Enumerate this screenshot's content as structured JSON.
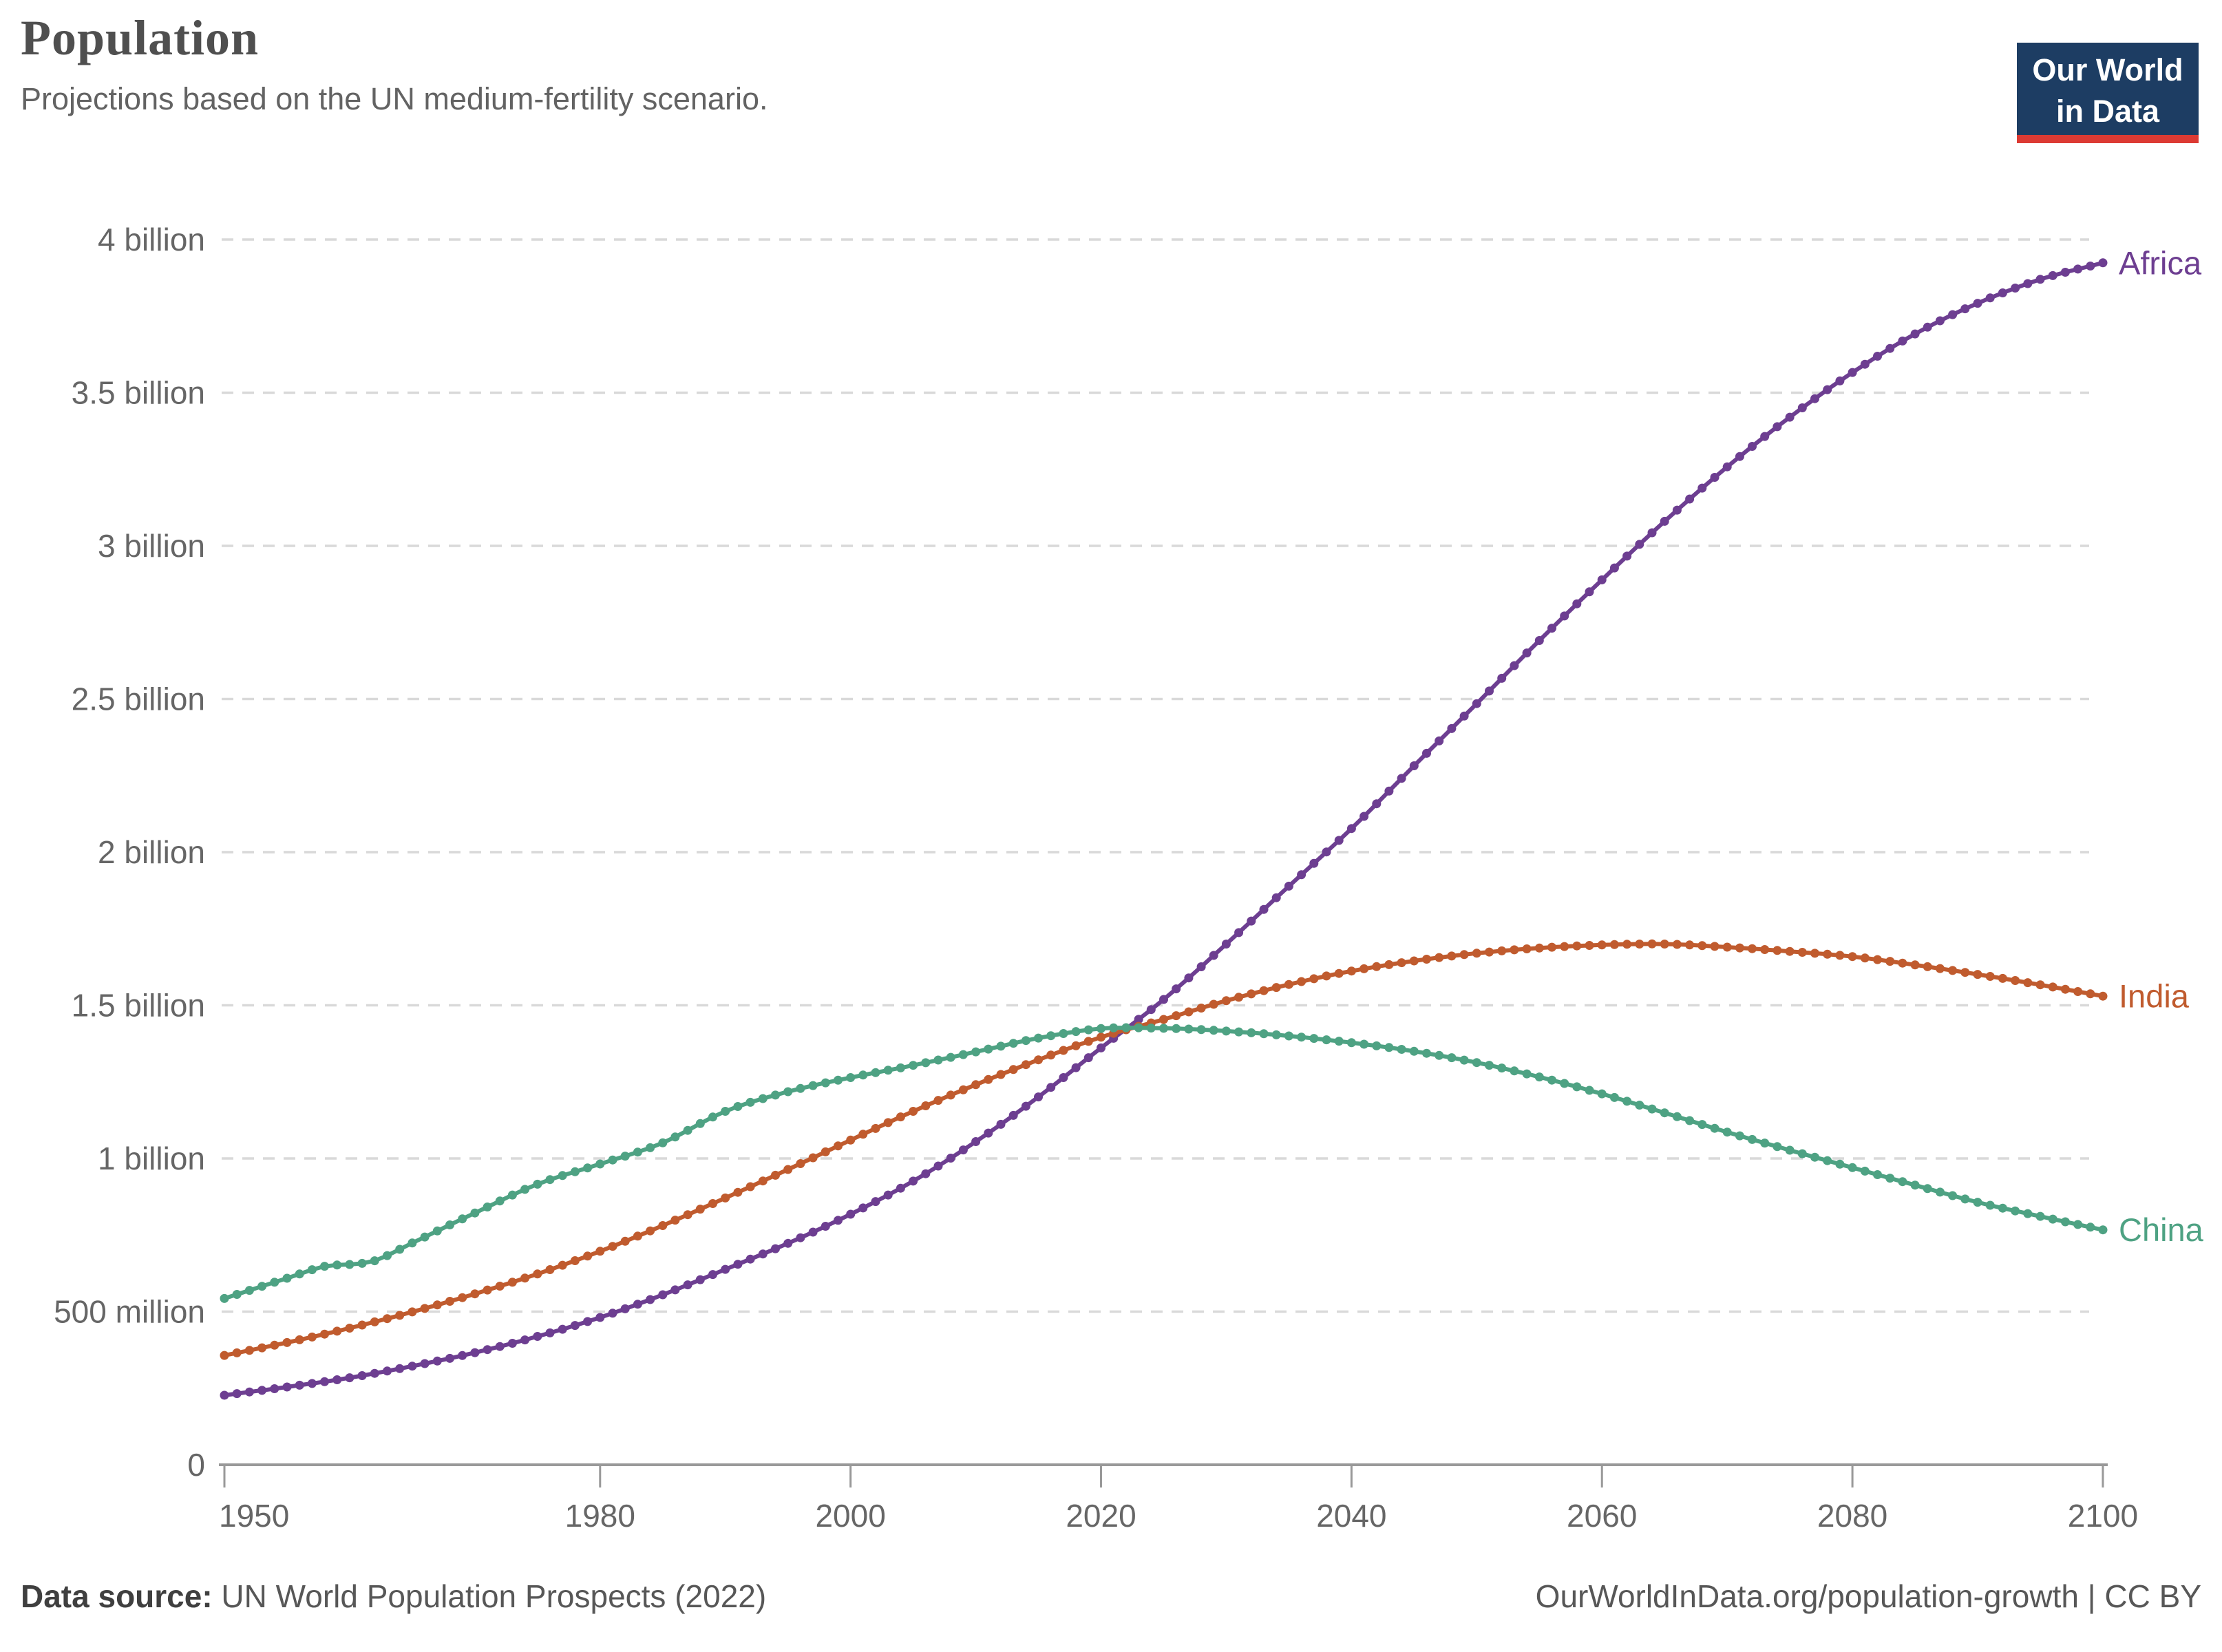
{
  "header": {
    "title": "Population",
    "subtitle": "Projections based on the UN medium-fertility scenario."
  },
  "logo": {
    "line1": "Our World",
    "line2": "in Data",
    "bg_color": "#1d3d63",
    "bar_color": "#dc3a33"
  },
  "footer": {
    "source_label": "Data source:",
    "source_text": " UN World Population Prospects (2022)",
    "credit": "OurWorldInData.org/population-growth | CC BY"
  },
  "chart_data": {
    "type": "line",
    "title": "Population",
    "subtitle": "Projections based on the UN medium-fertility scenario.",
    "xlabel": "",
    "ylabel": "",
    "xlim": [
      1950,
      2100
    ],
    "ylim": [
      0,
      4
    ],
    "grid": "horizontal-dashed",
    "legend_position": "right-end-labels",
    "units": "billions of people",
    "x_ticks": [
      "1950",
      "1980",
      "2000",
      "2020",
      "2040",
      "2060",
      "2080",
      "2100"
    ],
    "y_ticks": [
      {
        "value": 0,
        "label": "0"
      },
      {
        "value": 0.5,
        "label": "500 million"
      },
      {
        "value": 1,
        "label": "1 billion"
      },
      {
        "value": 1.5,
        "label": "1.5 billion"
      },
      {
        "value": 2,
        "label": "2 billion"
      },
      {
        "value": 2.5,
        "label": "2.5 billion"
      },
      {
        "value": 3,
        "label": "3 billion"
      },
      {
        "value": 3.5,
        "label": "3.5 billion"
      },
      {
        "value": 4,
        "label": "4 billion"
      }
    ],
    "colors": {
      "grid": "#d9d9d9",
      "axis": "#999999",
      "tick_text": "#666666"
    },
    "marker_style": "dot-per-year",
    "series": [
      {
        "name": "Africa",
        "color": "#6d3e91",
        "points": [
          [
            1950,
            0.227
          ],
          [
            1955,
            0.254
          ],
          [
            1960,
            0.284
          ],
          [
            1965,
            0.322
          ],
          [
            1970,
            0.366
          ],
          [
            1975,
            0.419
          ],
          [
            1980,
            0.481
          ],
          [
            1985,
            0.555
          ],
          [
            1990,
            0.638
          ],
          [
            1995,
            0.723
          ],
          [
            2000,
            0.818
          ],
          [
            2005,
            0.926
          ],
          [
            2010,
            1.055
          ],
          [
            2015,
            1.201
          ],
          [
            2020,
            1.361
          ],
          [
            2025,
            1.519
          ],
          [
            2030,
            1.7
          ],
          [
            2035,
            1.889
          ],
          [
            2040,
            2.077
          ],
          [
            2045,
            2.282
          ],
          [
            2050,
            2.485
          ],
          [
            2055,
            2.691
          ],
          [
            2060,
            2.889
          ],
          [
            2065,
            3.08
          ],
          [
            2070,
            3.258
          ],
          [
            2075,
            3.42
          ],
          [
            2080,
            3.566
          ],
          [
            2085,
            3.692
          ],
          [
            2090,
            3.792
          ],
          [
            2095,
            3.87
          ],
          [
            2100,
            3.924
          ]
        ]
      },
      {
        "name": "India",
        "color": "#c05b2e",
        "points": [
          [
            1950,
            0.357
          ],
          [
            1955,
            0.399
          ],
          [
            1960,
            0.446
          ],
          [
            1965,
            0.499
          ],
          [
            1970,
            0.558
          ],
          [
            1975,
            0.623
          ],
          [
            1980,
            0.697
          ],
          [
            1985,
            0.781
          ],
          [
            1990,
            0.871
          ],
          [
            1995,
            0.964
          ],
          [
            2000,
            1.06
          ],
          [
            2005,
            1.154
          ],
          [
            2010,
            1.241
          ],
          [
            2015,
            1.322
          ],
          [
            2020,
            1.396
          ],
          [
            2025,
            1.454
          ],
          [
            2030,
            1.515
          ],
          [
            2035,
            1.568
          ],
          [
            2040,
            1.612
          ],
          [
            2045,
            1.645
          ],
          [
            2050,
            1.67
          ],
          [
            2055,
            1.687
          ],
          [
            2060,
            1.697
          ],
          [
            2065,
            1.7
          ],
          [
            2070,
            1.69
          ],
          [
            2075,
            1.676
          ],
          [
            2080,
            1.659
          ],
          [
            2085,
            1.632
          ],
          [
            2090,
            1.601
          ],
          [
            2095,
            1.567
          ],
          [
            2100,
            1.53
          ]
        ]
      },
      {
        "name": "China",
        "color": "#4ea283",
        "points": [
          [
            1950,
            0.543
          ],
          [
            1955,
            0.609
          ],
          [
            1958,
            0.648
          ],
          [
            1960,
            0.654
          ],
          [
            1962,
            0.666
          ],
          [
            1965,
            0.724
          ],
          [
            1970,
            0.822
          ],
          [
            1975,
            0.916
          ],
          [
            1980,
            0.982
          ],
          [
            1985,
            1.051
          ],
          [
            1990,
            1.154
          ],
          [
            1995,
            1.218
          ],
          [
            2000,
            1.264
          ],
          [
            2005,
            1.304
          ],
          [
            2010,
            1.348
          ],
          [
            2015,
            1.393
          ],
          [
            2020,
            1.424
          ],
          [
            2025,
            1.425
          ],
          [
            2030,
            1.416
          ],
          [
            2035,
            1.4
          ],
          [
            2040,
            1.378
          ],
          [
            2045,
            1.35
          ],
          [
            2050,
            1.313
          ],
          [
            2055,
            1.266
          ],
          [
            2060,
            1.211
          ],
          [
            2065,
            1.149
          ],
          [
            2070,
            1.086
          ],
          [
            2075,
            1.027
          ],
          [
            2080,
            0.97
          ],
          [
            2085,
            0.913
          ],
          [
            2090,
            0.857
          ],
          [
            2095,
            0.811
          ],
          [
            2100,
            0.767
          ]
        ]
      }
    ]
  }
}
